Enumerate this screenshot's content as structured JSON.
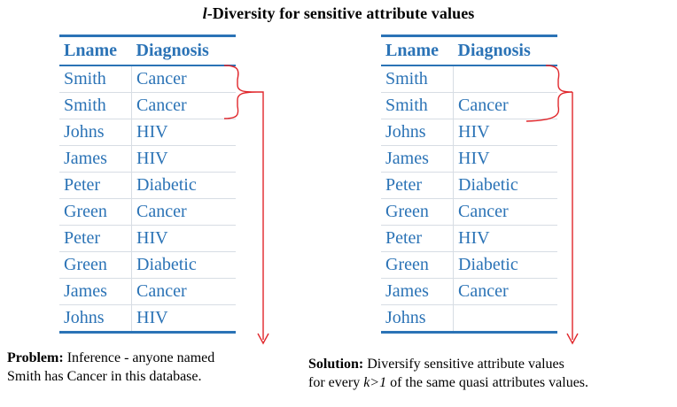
{
  "title": {
    "italic": "l",
    "rest": "-Diversity for sensitive attribute values"
  },
  "left_table": {
    "headers": [
      "Lname",
      "Diagnosis"
    ],
    "rows": [
      [
        "Smith",
        "Cancer"
      ],
      [
        "Smith",
        "Cancer"
      ],
      [
        "Johns",
        "HIV"
      ],
      [
        "James",
        "HIV"
      ],
      [
        "Peter",
        "Diabetic"
      ],
      [
        "Green",
        "Cancer"
      ],
      [
        "Peter",
        "HIV"
      ],
      [
        "Green",
        "Diabetic"
      ],
      [
        "James",
        "Cancer"
      ],
      [
        "Johns",
        "HIV"
      ]
    ]
  },
  "right_table": {
    "headers": [
      "Lname",
      "Diagnosis"
    ],
    "rows": [
      [
        "Smith",
        ""
      ],
      [
        "Smith",
        "Cancer"
      ],
      [
        "Johns",
        "HIV"
      ],
      [
        "James",
        "HIV"
      ],
      [
        "Peter",
        "Diabetic"
      ],
      [
        "Green",
        "Cancer"
      ],
      [
        "Peter",
        "HIV"
      ],
      [
        "Green",
        "Diabetic"
      ],
      [
        "James",
        "Cancer"
      ],
      [
        "Johns",
        ""
      ]
    ]
  },
  "problem": {
    "label": "Problem:",
    "line1": " Inference - anyone named",
    "line2": "Smith has Cancer in this database."
  },
  "solution": {
    "label": "Solution:",
    "line1": " Diversify sensitive attribute values",
    "line2_a": "for every ",
    "line2_k": "k>1",
    "line2_b": " of the same quasi attributes values."
  },
  "colors": {
    "table_text": "#2b73b6",
    "brace_arrow": "#e0262b"
  }
}
